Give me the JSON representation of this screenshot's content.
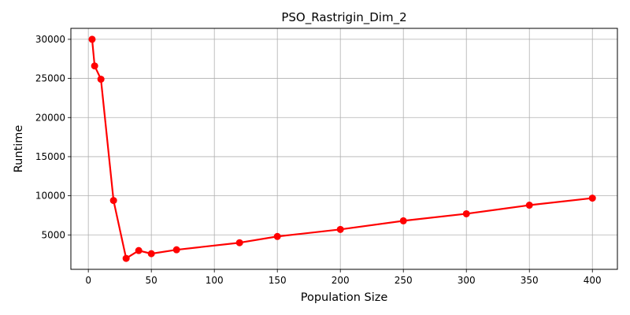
{
  "chart_data": {
    "type": "line",
    "title": "PSO_Rastrigin_Dim_2",
    "xlabel": "Population Size",
    "ylabel": "Runtime",
    "xlim": [
      -13.85,
      419.85
    ],
    "ylim": [
      600,
      31400
    ],
    "xticks": [
      0,
      50,
      100,
      150,
      200,
      250,
      300,
      350,
      400
    ],
    "yticks": [
      5000,
      10000,
      15000,
      20000,
      25000,
      30000
    ],
    "grid": true,
    "series": [
      {
        "color": "#ff0000",
        "x": [
          3,
          5,
          10,
          20,
          30,
          40,
          50,
          70,
          120,
          150,
          200,
          250,
          300,
          350,
          400
        ],
        "y": [
          30000,
          26600,
          24900,
          9400,
          2000,
          3000,
          2600,
          3100,
          4000,
          4800,
          5700,
          6800,
          7700,
          8800,
          9700
        ]
      }
    ]
  }
}
